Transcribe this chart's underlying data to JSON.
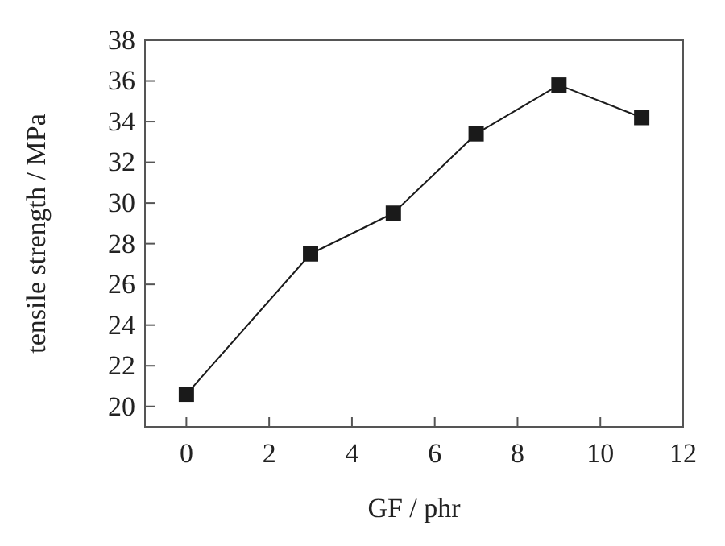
{
  "chart_data": {
    "type": "line",
    "xlabel": "GF / phr",
    "ylabel": "tensile strength / MPa",
    "x": [
      0,
      3,
      5,
      7,
      9,
      11
    ],
    "series": [
      {
        "color": "#1a1a1a",
        "values": [
          20.6,
          27.5,
          29.5,
          33.4,
          35.8,
          34.2
        ]
      }
    ],
    "xlim": [
      -1,
      12
    ],
    "xticks": [
      0,
      2,
      4,
      6,
      8,
      10,
      12
    ],
    "ylim": [
      19,
      38
    ],
    "yticks": [
      20,
      22,
      24,
      26,
      28,
      30,
      32,
      34,
      36,
      38
    ],
    "marker": "square",
    "line_style": "solid"
  }
}
